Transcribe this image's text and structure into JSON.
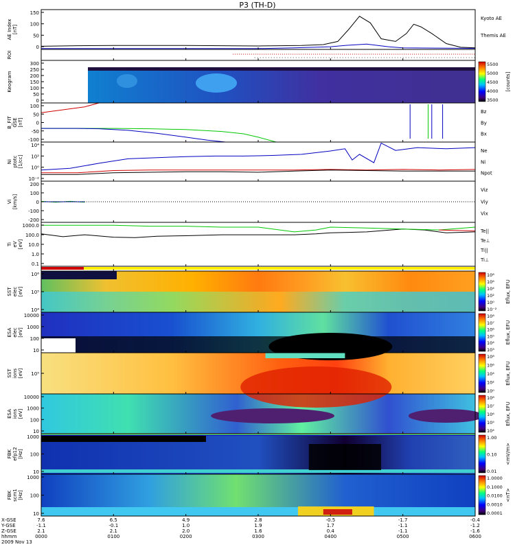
{
  "title": "P3 (TH-D)",
  "colors": {
    "red": "#d00000",
    "green": "#00c800",
    "blue": "#0000c0",
    "black": "#000000",
    "gray": "#bfbfbf"
  },
  "panels": [
    {
      "key": "ae",
      "ylabel": [
        "AE Index",
        "[nT]"
      ],
      "legend": [
        {
          "text": "Kyoto AE",
          "color": "#0000c0"
        },
        {
          "text": "Themis AE",
          "color": "#000000"
        }
      ],
      "ticks": [
        "150",
        "100",
        "50",
        "0"
      ]
    },
    {
      "key": "roi",
      "ylabel": [
        "ROI"
      ],
      "legend": [],
      "ticks": []
    },
    {
      "key": "keo",
      "ylabel": [
        "Keogram"
      ],
      "legend": [],
      "ticks": [
        "300",
        "250",
        "200",
        "150",
        "100",
        "50",
        "0"
      ]
    },
    {
      "key": "bfit",
      "ylabel": [
        "B_FIT",
        "GSE",
        "[nT]"
      ],
      "legend": [
        {
          "text": "Bz",
          "color": "#d00000"
        },
        {
          "text": "By",
          "color": "#00c800"
        },
        {
          "text": "Bx",
          "color": "#0000c0"
        }
      ],
      "ticks": [
        "100",
        "50",
        "0",
        "-50",
        "-100"
      ]
    },
    {
      "key": "ni",
      "ylabel": [
        "Ni",
        "ptotc",
        "[1/cc]"
      ],
      "legend": [
        {
          "text": "Ne",
          "color": "#d00000"
        },
        {
          "text": "Ni",
          "color": "#000000"
        },
        {
          "text": "Npot",
          "color": "#0000c0"
        }
      ],
      "ticks": [
        "10⁴",
        "10²",
        "10⁰",
        "10⁻²"
      ]
    },
    {
      "key": "vi",
      "ylabel": [
        "Vi",
        "[km/s]"
      ],
      "legend": [
        {
          "text": "Viz",
          "color": "#d00000"
        },
        {
          "text": "Viy",
          "color": "#00c800"
        },
        {
          "text": "Vix",
          "color": "#0000c0"
        }
      ],
      "ticks": [
        "200",
        "100",
        "0",
        "-100",
        "-200"
      ]
    },
    {
      "key": "ti",
      "ylabel": [
        "Ti",
        "eV",
        "[eV]"
      ],
      "legend": [
        {
          "text": "Te||",
          "color": "#000000"
        },
        {
          "text": "Te⊥",
          "color": "#d00000"
        },
        {
          "text": "Ti||",
          "color": "#00c800"
        },
        {
          "text": "Ti⊥",
          "color": "#0000c0"
        }
      ],
      "ticks": [
        "1000.0",
        "100.0",
        "10.0",
        "1.0",
        "0.1"
      ]
    },
    {
      "key": "flag",
      "ylabel": [],
      "legend": [],
      "ticks": []
    },
    {
      "key": "sst_e",
      "ylabel": [
        "SST",
        "elec",
        "[eV]"
      ],
      "legend": [],
      "ticks": [
        "10⁶",
        "10⁵",
        "10⁴"
      ]
    },
    {
      "key": "esa_e",
      "ylabel": [
        "ESA",
        "elec",
        "[eV]"
      ],
      "legend": [],
      "ticks": [
        "10000",
        "1000",
        "100",
        "10"
      ]
    },
    {
      "key": "sst_i",
      "ylabel": [
        "SST",
        "ions",
        "[eV]"
      ],
      "legend": [],
      "ticks": [
        "10⁵"
      ]
    },
    {
      "key": "esa_i",
      "ylabel": [
        "ESA",
        "ions",
        "[eV]"
      ],
      "legend": [],
      "ticks": [
        "10000",
        "1000",
        "100",
        "10"
      ]
    },
    {
      "key": "fbk_e",
      "ylabel": [
        "FBK",
        "efp12",
        "[Hz]"
      ],
      "legend": [],
      "ticks": [
        "1000",
        "100",
        "10"
      ]
    },
    {
      "key": "fbk_b",
      "ylabel": [
        "FBK",
        "scm1",
        "[Hz]"
      ],
      "legend": [],
      "ticks": [
        "1000",
        "100",
        "10"
      ]
    }
  ],
  "colorbars": [
    {
      "panel": "keo",
      "label": "[counts]",
      "ticks": [
        "5500",
        "5000",
        "4500",
        "4000",
        "3500"
      ]
    },
    {
      "panel": "sst_e",
      "label": "Eflux, EFU",
      "ticks": [
        "10⁸",
        "10⁶",
        "10⁴",
        "10²",
        "10⁰",
        "10⁻²"
      ]
    },
    {
      "panel": "esa_e",
      "label": "Eflux, EFU",
      "ticks": [
        "10⁸",
        "10⁷",
        "10⁶",
        "10⁵",
        "10⁴",
        "10³"
      ]
    },
    {
      "panel": "sst_i",
      "label": "Eflux, EFU",
      "ticks": [
        "10⁸",
        "10⁶",
        "10⁴",
        "10²",
        "10⁰"
      ]
    },
    {
      "panel": "esa_i",
      "label": "Eflux, EFU",
      "ticks": [
        "10⁸",
        "10⁷",
        "10⁶",
        "10⁵",
        "10⁴"
      ]
    },
    {
      "panel": "fbk_e",
      "label": "<mV/m>",
      "ticks": [
        "1.00",
        "0.10",
        "0.01"
      ]
    },
    {
      "panel": "fbk_b",
      "label": "<nT>",
      "ticks": [
        "1.0000",
        "0.1000",
        "0.0100",
        "0.0010",
        "0.0001"
      ]
    }
  ],
  "footer": {
    "row_labels": [
      "X-GSE",
      "Y-GSE",
      "Z-GSE",
      "hhmm",
      "2009 Nov 13"
    ],
    "columns": [
      [
        "7.6",
        "-1.1",
        "2.1",
        "0000"
      ],
      [
        "6.5",
        "-0.1",
        "2.1",
        "0100"
      ],
      [
        "4.9",
        "1.0",
        "2.0",
        "0200"
      ],
      [
        "2.8",
        "1.9",
        "1.6",
        "0300"
      ],
      [
        "-0.5",
        "1.7",
        "0.4",
        "0400"
      ],
      [
        "-1.7",
        "-1.1",
        "-1.1",
        "0500"
      ],
      [
        "-0.4",
        "-1.2",
        "-1.6",
        "0600"
      ]
    ]
  },
  "chart_data": [
    {
      "type": "line",
      "title": "AE Index",
      "ylabel": "AE Index [nT]",
      "xlim": [
        0,
        6
      ],
      "ylim": [
        0,
        150
      ],
      "series": [
        {
          "name": "Kyoto AE",
          "color": "#0000c0",
          "x": [
            0,
            0.5,
            1,
            1.5,
            2,
            2.5,
            3,
            3.5,
            4,
            4.2,
            4.5,
            4.8,
            5,
            5.5,
            6
          ],
          "y": [
            3,
            3,
            3,
            3,
            3,
            3,
            3,
            6,
            10,
            15,
            20,
            10,
            6,
            5,
            4
          ]
        },
        {
          "name": "Themis AE",
          "color": "#000000",
          "x": [
            0,
            0.5,
            1,
            1.5,
            2,
            2.5,
            3,
            3.3,
            3.6,
            3.9,
            4.1,
            4.25,
            4.4,
            4.55,
            4.7,
            4.9,
            5.05,
            5.15,
            5.25,
            5.4,
            5.6,
            5.8,
            6
          ],
          "y": [
            12,
            14,
            15,
            15,
            15,
            14,
            13,
            14,
            15,
            18,
            30,
            75,
            125,
            100,
            40,
            30,
            60,
            95,
            85,
            60,
            22,
            8,
            6
          ]
        }
      ]
    },
    {
      "type": "line",
      "title": "B_FIT GSE",
      "ylabel": "B_FIT GSE [nT]",
      "xlim": [
        0,
        6
      ],
      "ylim": [
        -100,
        100
      ],
      "series": [
        {
          "name": "Bz",
          "color": "#d00000",
          "x": [
            0,
            0.3,
            0.6,
            0.8
          ],
          "y": [
            50,
            65,
            80,
            100
          ]
        },
        {
          "name": "By",
          "color": "#00c800",
          "x": [
            0,
            0.5,
            1,
            1.5,
            2,
            2.5,
            2.8,
            3,
            3.25
          ],
          "y": [
            -30,
            -30,
            -30,
            -32,
            -36,
            -46,
            -58,
            -75,
            -100
          ]
        },
        {
          "name": "Bx",
          "color": "#0000c0",
          "x": [
            0,
            0.5,
            0.8,
            1.2,
            1.6,
            2,
            2.3,
            2.55
          ],
          "y": [
            -30,
            -30,
            -32,
            -40,
            -55,
            -75,
            -90,
            -100
          ]
        }
      ]
    },
    {
      "type": "line",
      "title": "Ni",
      "ylabel": "Ni ptotc [1/cc]",
      "xlim": [
        0,
        6
      ],
      "ylim": [
        -2,
        5
      ],
      "yscale": "log10",
      "series": [
        {
          "name": "Ne",
          "color": "#d00000",
          "x": [
            0,
            0.5,
            1,
            1.5,
            2,
            2.5,
            3,
            3.5,
            4,
            4.5,
            5,
            5.5,
            6
          ],
          "y": [
            -0.5,
            -0.5,
            -0.1,
            0,
            0,
            0,
            0,
            0,
            0.1,
            0,
            0.1,
            0,
            0.1
          ]
        },
        {
          "name": "Ni",
          "color": "#000000",
          "x": [
            0,
            0.5,
            1,
            1.5,
            2,
            2.5,
            3,
            3.5,
            4,
            4.5,
            5,
            5.5,
            6
          ],
          "y": [
            -0.8,
            -0.8,
            -0.5,
            -0.4,
            -0.3,
            -0.3,
            -0.4,
            -0.2,
            0,
            -0.1,
            -0.2,
            -0.2,
            -0.2
          ]
        },
        {
          "name": "Npot",
          "color": "#0000c0",
          "x": [
            0,
            0.4,
            0.8,
            1.2,
            1.6,
            2,
            2.4,
            2.8,
            3.2,
            3.6,
            4,
            4.2,
            4.3,
            4.4,
            4.6,
            4.7,
            4.9,
            5.2,
            5.6,
            6
          ],
          "y": [
            0,
            0.3,
            1.2,
            2,
            2.2,
            2.4,
            2.5,
            2.5,
            2.6,
            2.8,
            3.4,
            3.8,
            1.8,
            2.8,
            1.3,
            4.8,
            3.5,
            4,
            3.8,
            4
          ]
        }
      ]
    },
    {
      "type": "line",
      "title": "Vi",
      "ylabel": "Vi [km/s]",
      "xlim": [
        0,
        6
      ],
      "ylim": [
        -250,
        250
      ],
      "series": [
        {
          "name": "Viz",
          "color": "#d00000",
          "x": [
            0,
            0.2,
            0.4,
            0.6
          ],
          "y": [
            0,
            0,
            0,
            0
          ]
        },
        {
          "name": "Viy",
          "color": "#00c800",
          "x": [
            0,
            0.2,
            0.4,
            0.6
          ],
          "y": [
            5,
            -5,
            5,
            -5
          ]
        },
        {
          "name": "Vix",
          "color": "#0000c0",
          "x": [
            0,
            0.6
          ],
          "y": [
            0,
            0
          ]
        }
      ]
    },
    {
      "type": "line",
      "title": "Ti",
      "ylabel": "Ti eV [eV]",
      "xlim": [
        0,
        6
      ],
      "ylim": [
        -1.3,
        3.3
      ],
      "yscale": "log10",
      "series": [
        {
          "name": "Te||",
          "color": "#000000",
          "x": [
            0,
            0.3,
            0.6,
            1,
            1.3,
            1.6,
            2,
            2.5,
            3,
            3.5,
            3.8,
            4,
            4.5,
            5,
            5.3,
            5.6,
            6
          ],
          "y": [
            2.1,
            1.8,
            2,
            1.75,
            1.7,
            1.85,
            1.9,
            2,
            2,
            2,
            2.1,
            2.2,
            2.3,
            2.6,
            2.5,
            2.2,
            2.3
          ]
        },
        {
          "name": "Ti||",
          "color": "#00c800",
          "x": [
            0,
            0.5,
            1,
            1.5,
            2,
            2.5,
            3,
            3.5,
            3.8,
            4,
            4.5,
            5,
            5.5,
            6
          ],
          "y": [
            3,
            3,
            3,
            2.9,
            2.9,
            2.8,
            2.8,
            2.3,
            2.5,
            2.8,
            2.7,
            2.6,
            2.5,
            2.8
          ]
        },
        {
          "name": "Te⊥",
          "color": "#d00000",
          "x": [
            5.5,
            6
          ],
          "y": [
            2.5,
            2.4
          ]
        }
      ]
    },
    {
      "type": "heatmap",
      "title": "Keogram",
      "ylim": [
        0,
        300
      ],
      "colorbar": [
        3500,
        5500
      ],
      "colorbar_label": "[counts]"
    },
    {
      "type": "heatmap",
      "title": "SST elec",
      "colorbar_label": "Eflux, EFU"
    },
    {
      "type": "heatmap",
      "title": "ESA elec",
      "colorbar_label": "Eflux, EFU"
    },
    {
      "type": "heatmap",
      "title": "SST ions",
      "colorbar_label": "Eflux, EFU"
    },
    {
      "type": "heatmap",
      "title": "ESA ions",
      "colorbar_label": "Eflux, EFU"
    },
    {
      "type": "heatmap",
      "title": "FBK efp12",
      "colorbar_label": "<mV/m>"
    },
    {
      "type": "heatmap",
      "title": "FBK scm1",
      "colorbar_label": "<nT>"
    }
  ]
}
